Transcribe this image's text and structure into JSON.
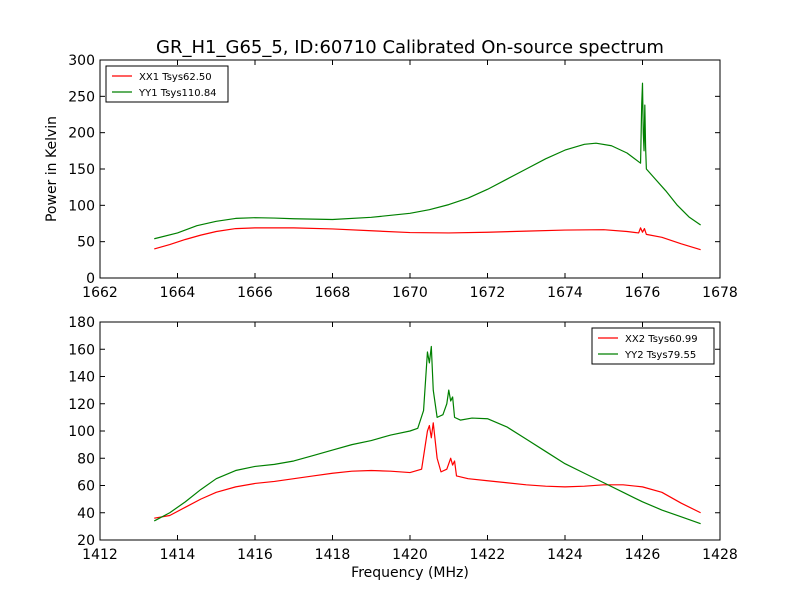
{
  "figure": {
    "title": "GR_H1_G65_5, ID:60710 Calibrated On-source spectrum",
    "ylabel": "Power in Kelvin",
    "xlabel": "Frequency (MHz)"
  },
  "colors": {
    "red": "#ff0000",
    "green": "#008000",
    "axis": "#000000"
  },
  "chart_data": [
    {
      "type": "line",
      "title": "GR_H1_G65_5, ID:60710 Calibrated On-source spectrum",
      "xlabel": "",
      "ylabel": "Power in Kelvin",
      "xlim": [
        1662,
        1678
      ],
      "ylim": [
        0,
        300
      ],
      "x_ticks": [
        1662,
        1664,
        1666,
        1668,
        1670,
        1672,
        1674,
        1676,
        1678
      ],
      "y_ticks": [
        0,
        50,
        100,
        150,
        200,
        250,
        300
      ],
      "legend_position": "top-left",
      "series": [
        {
          "name": "XX1 Tsys62.50",
          "color": "#ff0000",
          "points": [
            [
              1663.4,
              40
            ],
            [
              1663.8,
              46
            ],
            [
              1664.2,
              53
            ],
            [
              1664.6,
              59
            ],
            [
              1665.0,
              64
            ],
            [
              1665.5,
              68
            ],
            [
              1666.0,
              69
            ],
            [
              1667.0,
              69
            ],
            [
              1668.0,
              67.5
            ],
            [
              1669.0,
              65
            ],
            [
              1670.0,
              62.5
            ],
            [
              1671.0,
              62
            ],
            [
              1672.0,
              63
            ],
            [
              1673.0,
              64.5
            ],
            [
              1674.0,
              66
            ],
            [
              1675.0,
              66.5
            ],
            [
              1675.6,
              64
            ],
            [
              1675.9,
              62
            ],
            [
              1675.95,
              69
            ],
            [
              1676.0,
              63
            ],
            [
              1676.05,
              68
            ],
            [
              1676.1,
              60
            ],
            [
              1676.5,
              56
            ],
            [
              1677.0,
              47
            ],
            [
              1677.5,
              39
            ]
          ]
        },
        {
          "name": "YY1 Tsys110.84",
          "color": "#008000",
          "points": [
            [
              1663.4,
              54
            ],
            [
              1664.0,
              62
            ],
            [
              1664.5,
              72
            ],
            [
              1665.0,
              78
            ],
            [
              1665.5,
              82
            ],
            [
              1666.0,
              83
            ],
            [
              1666.5,
              82.5
            ],
            [
              1667.0,
              81.5
            ],
            [
              1668.0,
              80.5
            ],
            [
              1669.0,
              83.5
            ],
            [
              1670.0,
              89
            ],
            [
              1670.5,
              94
            ],
            [
              1671.0,
              101
            ],
            [
              1671.5,
              110
            ],
            [
              1672.0,
              122
            ],
            [
              1672.5,
              136
            ],
            [
              1673.0,
              150
            ],
            [
              1673.5,
              164
            ],
            [
              1674.0,
              176
            ],
            [
              1674.5,
              184
            ],
            [
              1674.8,
              185.5
            ],
            [
              1675.2,
              182
            ],
            [
              1675.6,
              172
            ],
            [
              1675.95,
              158
            ],
            [
              1675.98,
              240
            ],
            [
              1676.0,
              268
            ],
            [
              1676.02,
              200
            ],
            [
              1676.04,
              175
            ],
            [
              1676.06,
              238
            ],
            [
              1676.08,
              180
            ],
            [
              1676.1,
              150
            ],
            [
              1676.3,
              138
            ],
            [
              1676.6,
              120
            ],
            [
              1676.9,
              100
            ],
            [
              1677.2,
              84
            ],
            [
              1677.5,
              73
            ]
          ]
        }
      ]
    },
    {
      "type": "line",
      "title": "",
      "xlabel": "Frequency (MHz)",
      "ylabel": "",
      "xlim": [
        1412,
        1428
      ],
      "ylim": [
        20,
        180
      ],
      "x_ticks": [
        1412,
        1414,
        1416,
        1418,
        1420,
        1422,
        1424,
        1426,
        1428
      ],
      "y_ticks": [
        20,
        40,
        60,
        80,
        100,
        120,
        140,
        160,
        180
      ],
      "legend_position": "top-right",
      "series": [
        {
          "name": "XX2 Tsys60.99",
          "color": "#ff0000",
          "points": [
            [
              1413.4,
              36
            ],
            [
              1413.8,
              38
            ],
            [
              1414.2,
              44
            ],
            [
              1414.6,
              50
            ],
            [
              1415.0,
              55
            ],
            [
              1415.5,
              59
            ],
            [
              1416.0,
              61.5
            ],
            [
              1416.5,
              63
            ],
            [
              1417.0,
              65
            ],
            [
              1417.5,
              67
            ],
            [
              1418.0,
              69
            ],
            [
              1418.5,
              70.5
            ],
            [
              1419.0,
              71
            ],
            [
              1419.5,
              70.5
            ],
            [
              1420.0,
              69.5
            ],
            [
              1420.3,
              72
            ],
            [
              1420.45,
              100
            ],
            [
              1420.5,
              104
            ],
            [
              1420.55,
              95
            ],
            [
              1420.6,
              106
            ],
            [
              1420.7,
              80
            ],
            [
              1420.8,
              70
            ],
            [
              1420.95,
              72
            ],
            [
              1421.05,
              80
            ],
            [
              1421.1,
              75
            ],
            [
              1421.15,
              78
            ],
            [
              1421.2,
              67
            ],
            [
              1421.5,
              65
            ],
            [
              1422.0,
              63.5
            ],
            [
              1422.5,
              62
            ],
            [
              1423.0,
              60.5
            ],
            [
              1423.5,
              59.5
            ],
            [
              1424.0,
              59
            ],
            [
              1424.5,
              59.5
            ],
            [
              1425.0,
              60.5
            ],
            [
              1425.5,
              60.5
            ],
            [
              1426.0,
              59
            ],
            [
              1426.5,
              55
            ],
            [
              1427.0,
              47
            ],
            [
              1427.5,
              40
            ]
          ]
        },
        {
          "name": "YY2 Tsys79.55",
          "color": "#008000",
          "points": [
            [
              1413.4,
              34
            ],
            [
              1413.8,
              40
            ],
            [
              1414.2,
              48
            ],
            [
              1414.6,
              57
            ],
            [
              1415.0,
              65
            ],
            [
              1415.5,
              71
            ],
            [
              1416.0,
              74
            ],
            [
              1416.5,
              75.5
            ],
            [
              1417.0,
              78
            ],
            [
              1417.5,
              82
            ],
            [
              1418.0,
              86
            ],
            [
              1418.5,
              90
            ],
            [
              1419.0,
              93
            ],
            [
              1419.5,
              97
            ],
            [
              1420.0,
              100
            ],
            [
              1420.2,
              102
            ],
            [
              1420.35,
              115
            ],
            [
              1420.45,
              158
            ],
            [
              1420.5,
              150
            ],
            [
              1420.55,
              162
            ],
            [
              1420.6,
              130
            ],
            [
              1420.7,
              110
            ],
            [
              1420.85,
              112
            ],
            [
              1420.95,
              120
            ],
            [
              1421.0,
              130
            ],
            [
              1421.05,
              122
            ],
            [
              1421.1,
              125
            ],
            [
              1421.15,
              110
            ],
            [
              1421.3,
              108
            ],
            [
              1421.6,
              109.5
            ],
            [
              1422.0,
              109
            ],
            [
              1422.5,
              103
            ],
            [
              1423.0,
              94
            ],
            [
              1423.5,
              85
            ],
            [
              1424.0,
              76
            ],
            [
              1424.5,
              69
            ],
            [
              1425.0,
              62
            ],
            [
              1425.5,
              55
            ],
            [
              1426.0,
              48
            ],
            [
              1426.5,
              42
            ],
            [
              1427.0,
              37
            ],
            [
              1427.5,
              32
            ]
          ]
        }
      ]
    }
  ]
}
